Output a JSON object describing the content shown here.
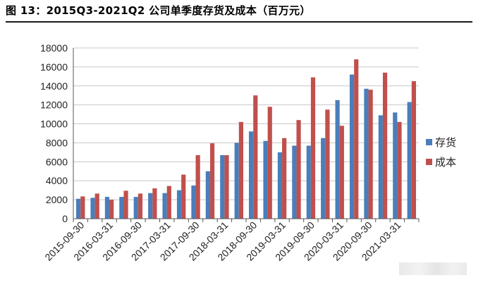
{
  "figure_title": "图 13：2015Q3-2021Q2 公司单季度存货及成本（百万元）",
  "chart_data": {
    "type": "bar",
    "title": "",
    "xlabel": "",
    "ylabel": "",
    "ylim": [
      0,
      18000
    ],
    "yticks": [
      0,
      2000,
      4000,
      6000,
      8000,
      10000,
      12000,
      14000,
      16000,
      18000
    ],
    "grid": "horizontal",
    "legend_position": "right",
    "x_tick_labels": [
      "2015-09-30",
      "2016-03-31",
      "2016-09-30",
      "2017-03-31",
      "2017-09-30",
      "2018-03-31",
      "2018-09-30",
      "2019-03-31",
      "2019-09-30",
      "2020-03-31",
      "2020-09-30",
      "2021-03-31"
    ],
    "categories": [
      "2015-09-30",
      "2015-12-31",
      "2016-03-31",
      "2016-06-30",
      "2016-09-30",
      "2016-12-31",
      "2017-03-31",
      "2017-06-30",
      "2017-09-30",
      "2017-12-31",
      "2018-03-31",
      "2018-06-30",
      "2018-09-30",
      "2018-12-31",
      "2019-03-31",
      "2019-06-30",
      "2019-09-30",
      "2019-12-31",
      "2020-03-31",
      "2020-06-30",
      "2020-09-30",
      "2020-12-31",
      "2021-03-31",
      "2021-06-30"
    ],
    "series": [
      {
        "name": "存货",
        "color": "#4a7ebb",
        "values": [
          2100,
          2200,
          2300,
          2300,
          2300,
          2700,
          2700,
          3000,
          3500,
          5000,
          6700,
          8000,
          9200,
          8200,
          7000,
          7700,
          7700,
          8500,
          12500,
          15200,
          13700,
          10900,
          11200,
          12300
        ]
      },
      {
        "name": "成本",
        "color": "#c0504d",
        "values": [
          2350,
          2650,
          2000,
          2950,
          2650,
          3200,
          3450,
          4650,
          6700,
          7950,
          6700,
          10200,
          13000,
          11800,
          8500,
          10400,
          14900,
          11500,
          9800,
          16800,
          13600,
          15400,
          10200,
          14500
        ]
      }
    ]
  }
}
